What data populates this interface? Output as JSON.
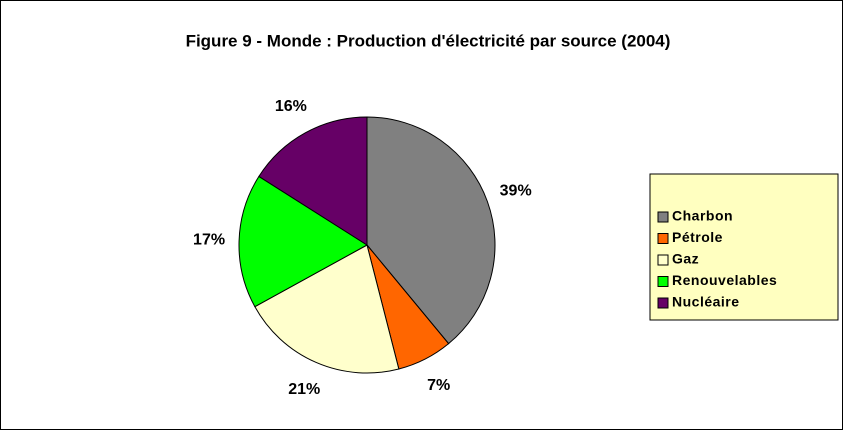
{
  "chart_data": {
    "type": "pie",
    "title": "Figure 9 - Monde : Production d'électricité par source (2004)",
    "categories": [
      "Charbon",
      "Pétrole",
      "Gaz",
      "Renouvelables",
      "Nucléaire"
    ],
    "values": [
      39,
      7,
      21,
      17,
      16
    ],
    "value_labels": [
      "39%",
      "7%",
      "21%",
      "17%",
      "16%"
    ],
    "colors": [
      "#808080",
      "#ff6600",
      "#ffffcc",
      "#00ff00",
      "#660066"
    ],
    "legend": "right"
  }
}
